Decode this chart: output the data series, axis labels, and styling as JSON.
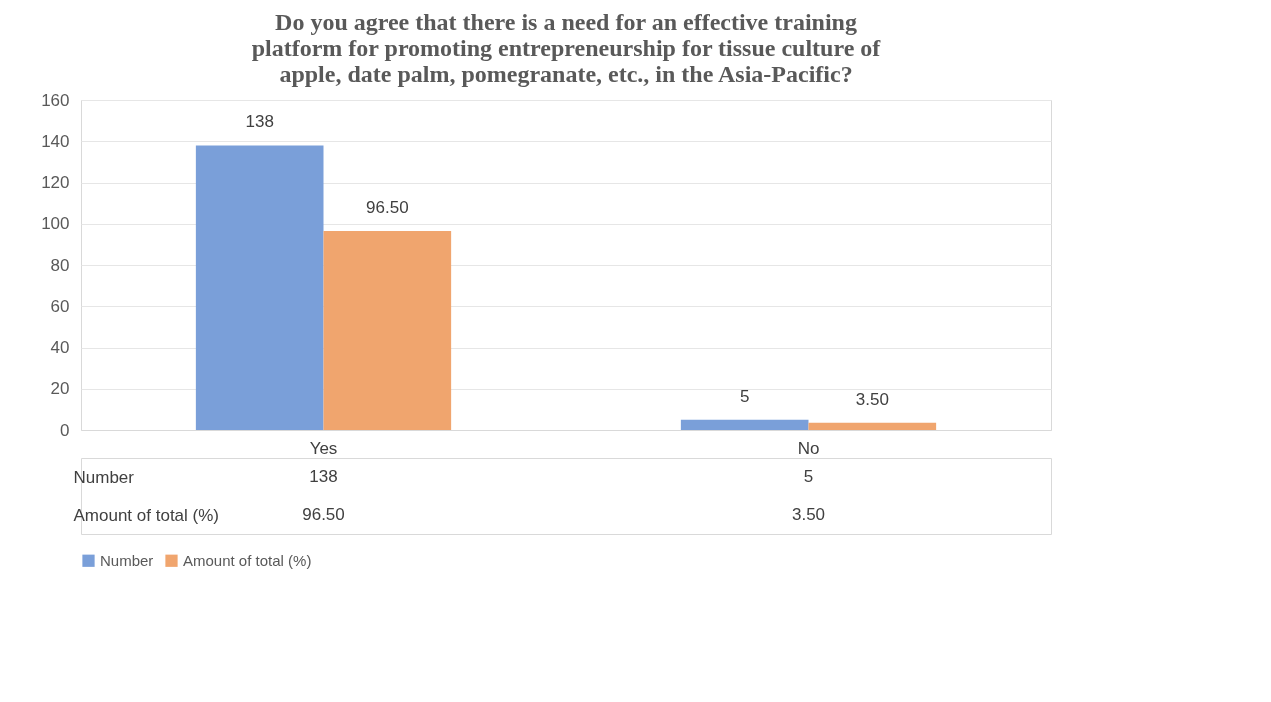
{
  "chart_data": {
    "type": "bar",
    "title": "Do you agree that  there is a need for an effective training platform for promoting entrepreneurship for tissue culture of apple, date palm, pomegranate, etc., in the Asia-Pacific?",
    "categories": [
      "Yes",
      "No"
    ],
    "series": [
      {
        "name": "Number",
        "color": "#7a9fd9",
        "values": [
          138,
          5
        ],
        "value_labels": [
          "138",
          "5"
        ]
      },
      {
        "name": "Amount of total (%)",
        "color": "#f0a56e",
        "values": [
          96.5,
          3.5
        ],
        "value_labels": [
          "96.50",
          "3.50"
        ]
      }
    ],
    "ylim": [
      0,
      160
    ],
    "yticks": [
      0,
      20,
      40,
      60,
      80,
      100,
      120,
      140,
      160
    ],
    "grid": "y",
    "legend": "bottom"
  }
}
